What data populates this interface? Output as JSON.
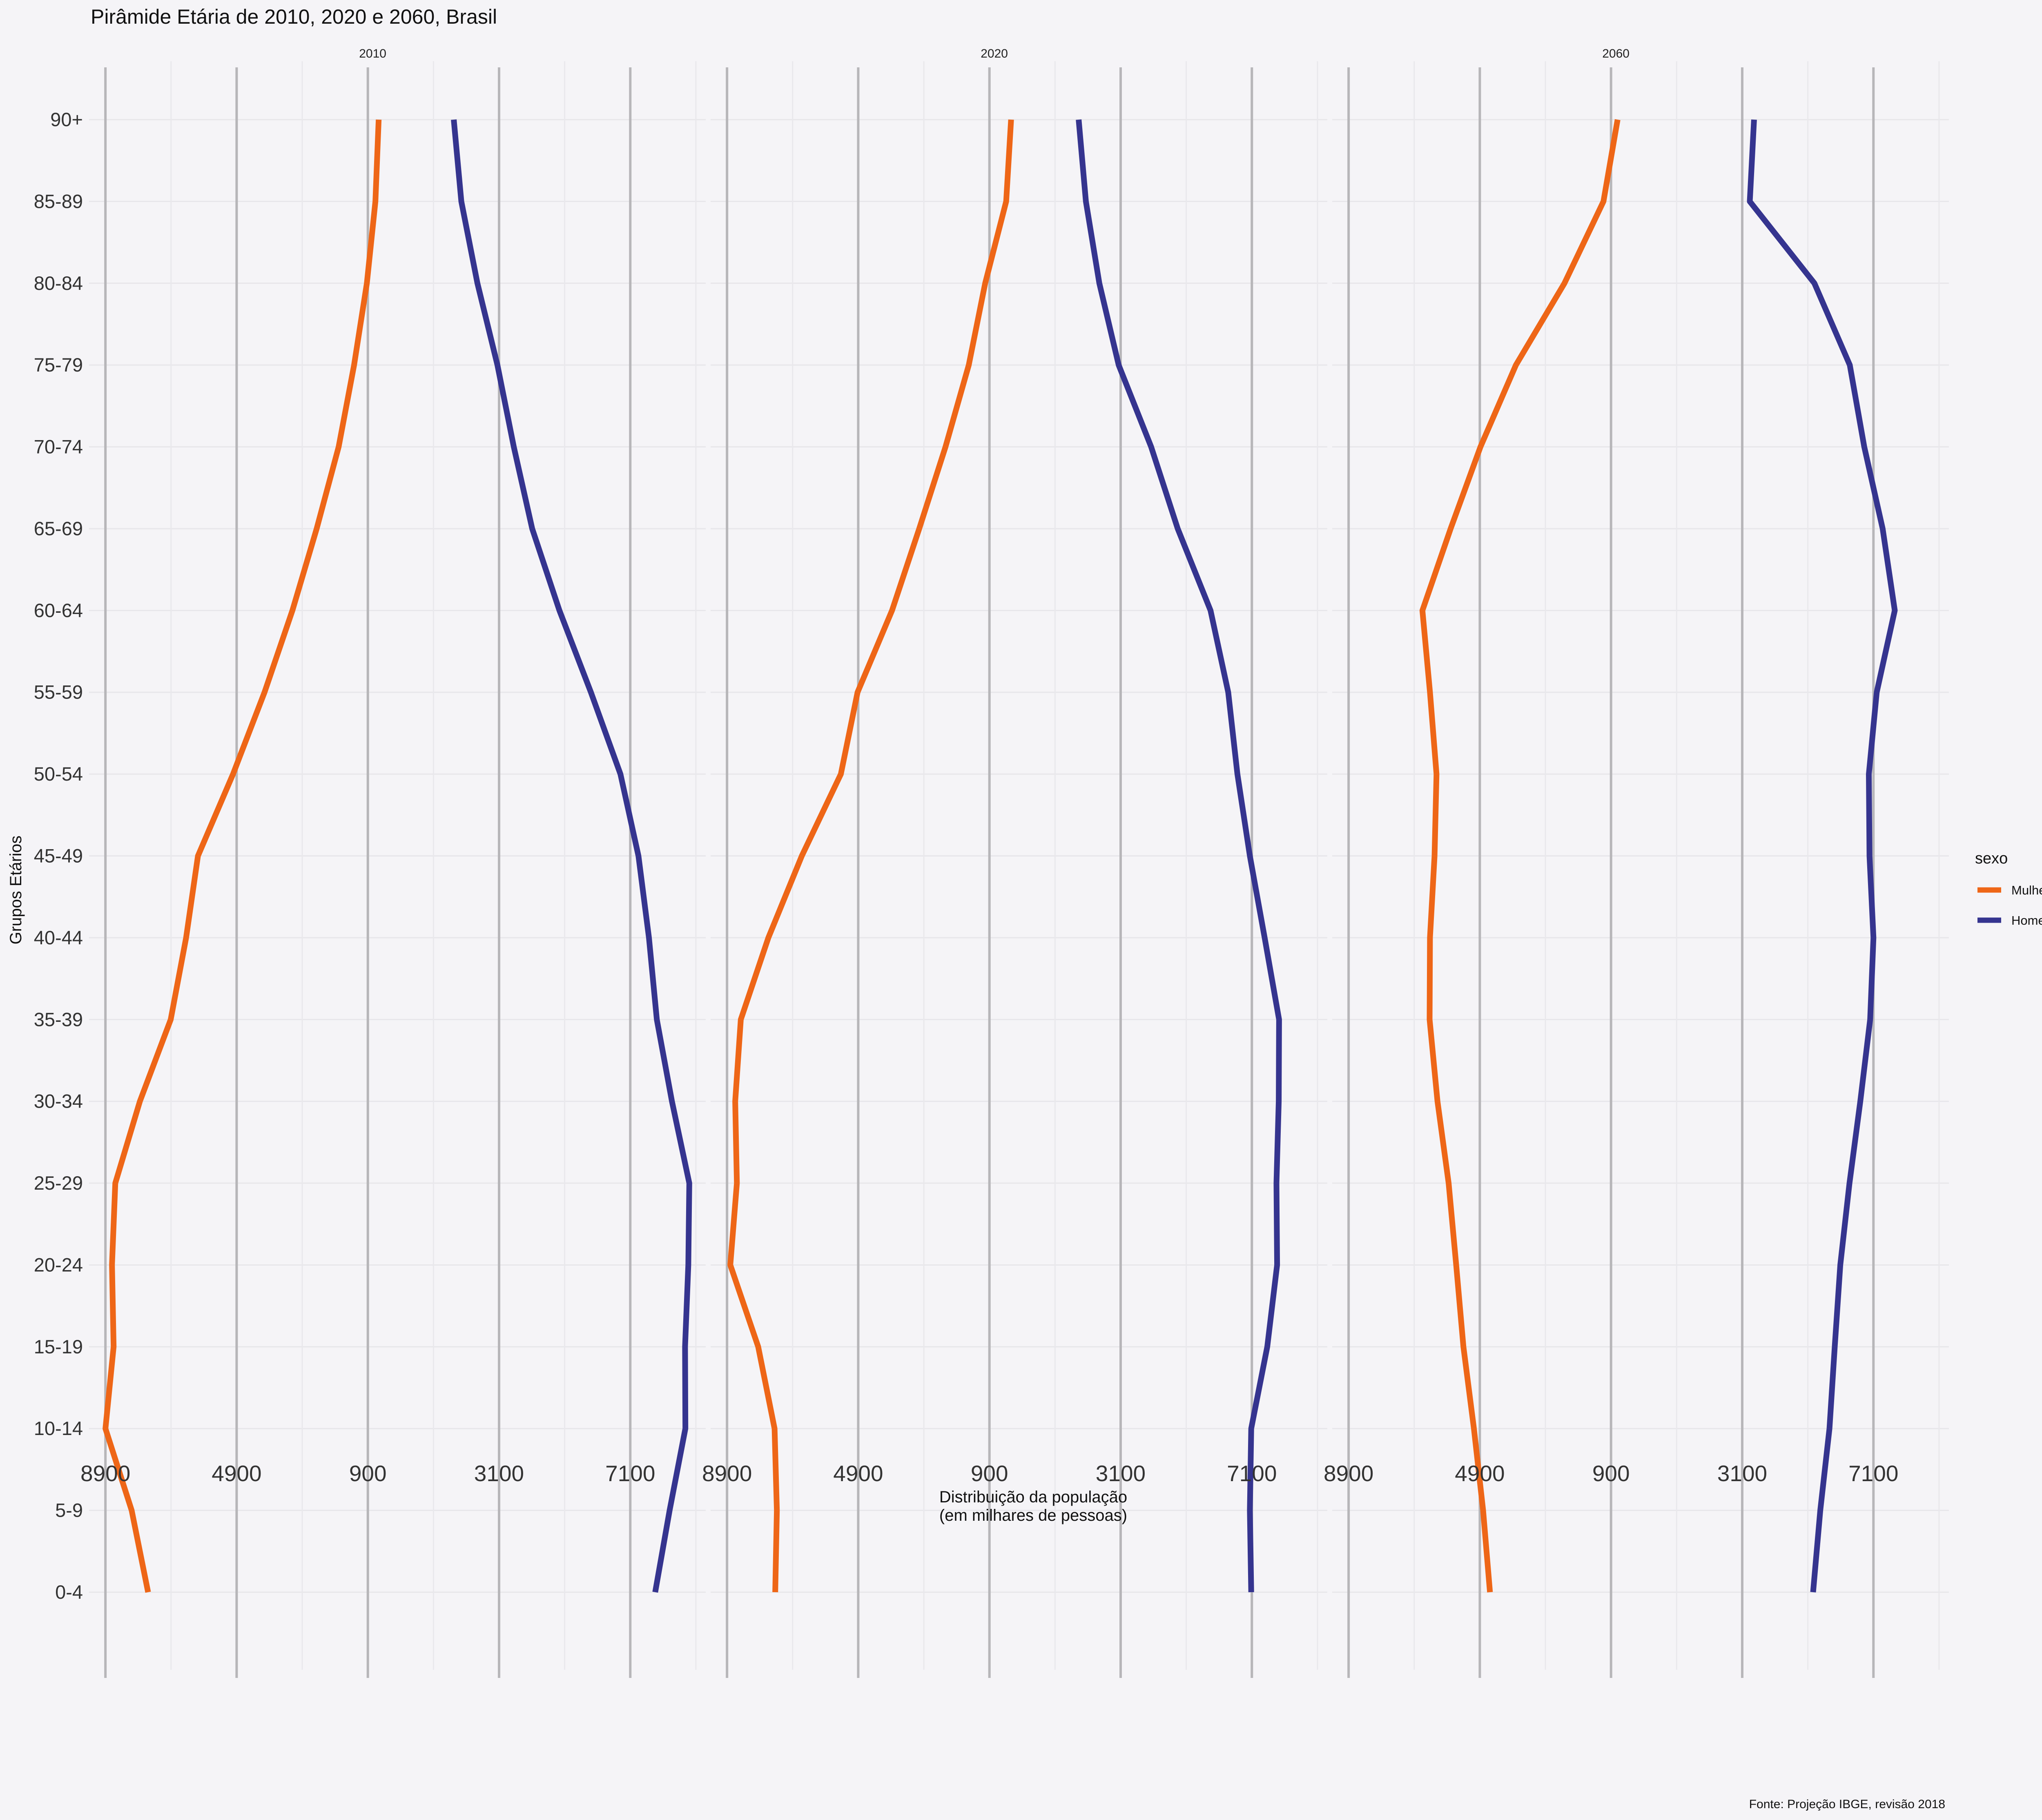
{
  "chart_data": {
    "type": "line",
    "title": "Pirâmide Etária de 2010, 2020 e 2060, Brasil",
    "xlabel": "Distribuição da população\n(em milhares de pessoas)",
    "ylabel": "Grupos Etários",
    "caption": "Fonte: Projeção IBGE, revisão 2018",
    "xlim": [
      -9400,
      9400
    ],
    "xticks": [
      -8900,
      -4900,
      -900,
      3100,
      7100
    ],
    "xtick_labels": [
      "8900",
      "4900",
      "900",
      "3100",
      "7100"
    ],
    "xgrid": [
      -8900,
      -6900,
      -4900,
      -2900,
      -900,
      1100,
      3100,
      5100,
      7100,
      9100
    ],
    "grid": true,
    "legend": {
      "title": "sexo",
      "position": "right",
      "entries": [
        {
          "name": "Mulheres",
          "color": "#ee6617"
        },
        {
          "name": "Homens",
          "color": "#35348f"
        }
      ]
    },
    "categories": [
      "0-4",
      "5-9",
      "10-14",
      "15-19",
      "20-24",
      "25-29",
      "30-34",
      "35-39",
      "40-44",
      "45-49",
      "50-54",
      "55-59",
      "60-64",
      "65-69",
      "70-74",
      "75-79",
      "80-84",
      "85-89",
      "90+"
    ],
    "panels": [
      {
        "label": "2010",
        "series": [
          {
            "name": "Mulheres",
            "values": [
              -7600,
              -8100,
              -8900,
              -8650,
              -8700,
              -8600,
              -7850,
              -6910,
              -6440,
              -6080,
              -5010,
              -4050,
              -3200,
              -2460,
              -1790,
              -1320,
              -930,
              -670,
              -570
            ]
          },
          {
            "name": "Homens",
            "values": [
              7860,
              8300,
              8780,
              8770,
              8870,
              8900,
              8370,
              7910,
              7670,
              7350,
              6800,
              5900,
              4940,
              4110,
              3550,
              3050,
              2440,
              1950,
              1720
            ]
          }
        ]
      },
      {
        "label": "2020",
        "series": [
          {
            "name": "Mulheres",
            "values": [
              -7430,
              -7380,
              -7450,
              -7950,
              -8800,
              -8600,
              -8650,
              -8480,
              -7640,
              -6620,
              -5430,
              -4920,
              -3870,
              -3040,
              -2240,
              -1530,
              -1030,
              -390,
              -240
            ]
          },
          {
            "name": "Homens",
            "values": [
              7080,
              7040,
              7080,
              7570,
              7870,
              7850,
              7920,
              7930,
              7490,
              7040,
              6660,
              6380,
              5840,
              4840,
              4030,
              3040,
              2450,
              2040,
              1820
            ]
          }
        ]
      },
      {
        "label": "2060",
        "series": [
          {
            "name": "Mulheres",
            "values": [
              -4590,
              -4800,
              -5080,
              -5400,
              -5620,
              -5850,
              -6190,
              -6430,
              -6420,
              -6280,
              -6220,
              -6420,
              -6650,
              -5790,
              -4880,
              -3800,
              -2320,
              -1130,
              -700
            ]
          },
          {
            "name": "Homens",
            "values": [
              5260,
              5480,
              5760,
              5920,
              6090,
              6370,
              6700,
              7000,
              7100,
              6980,
              6960,
              7200,
              7750,
              7380,
              6820,
              6380,
              5300,
              3330,
              3460
            ]
          }
        ]
      }
    ]
  }
}
